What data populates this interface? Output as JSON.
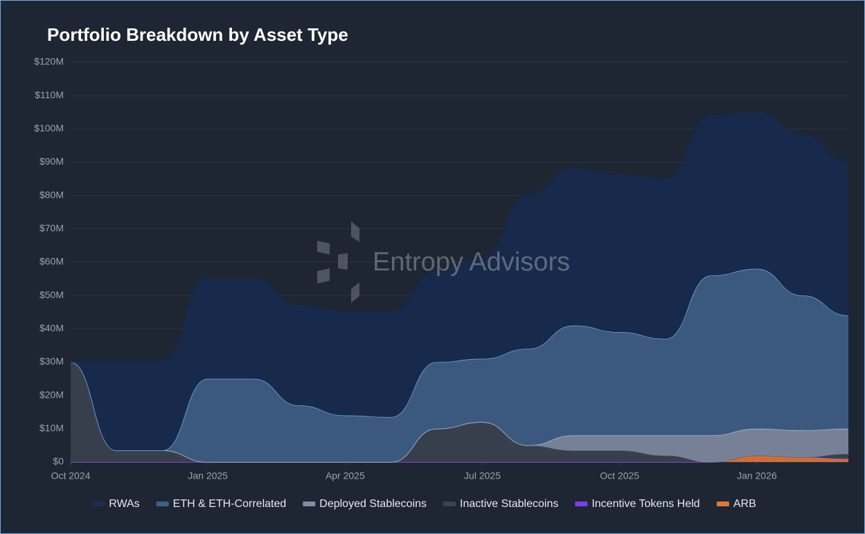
{
  "chart_data": {
    "type": "stacked-area",
    "title": "Portfolio Breakdown by Asset Type",
    "watermark": "Entropy Advisors",
    "x": [
      "2024-10",
      "2024-11",
      "2024-12",
      "2025-01",
      "2025-02",
      "2025-03",
      "2025-04",
      "2025-05",
      "2025-06",
      "2025-07",
      "2025-08",
      "2025-09",
      "2025-10",
      "2025-11",
      "2025-12",
      "2026-01",
      "2026-02",
      "2026-03"
    ],
    "xticks": [
      {
        "value": "2024-10",
        "label": "Oct 2024"
      },
      {
        "value": "2025-01",
        "label": "Jan 2025"
      },
      {
        "value": "2025-04",
        "label": "Apr 2025"
      },
      {
        "value": "2025-07",
        "label": "Jul 2025"
      },
      {
        "value": "2025-10",
        "label": "Oct 2025"
      },
      {
        "value": "2026-01",
        "label": "Jan 2026"
      }
    ],
    "ylim": [
      0,
      120
    ],
    "yticks": [
      {
        "value": 0,
        "label": "$0"
      },
      {
        "value": 10,
        "label": "$10M"
      },
      {
        "value": 20,
        "label": "$20M"
      },
      {
        "value": 30,
        "label": "$30M"
      },
      {
        "value": 40,
        "label": "$40M"
      },
      {
        "value": 50,
        "label": "$50M"
      },
      {
        "value": 60,
        "label": "$60M"
      },
      {
        "value": 70,
        "label": "$70M"
      },
      {
        "value": 80,
        "label": "$80M"
      },
      {
        "value": 90,
        "label": "$90M"
      },
      {
        "value": 100,
        "label": "$100M"
      },
      {
        "value": 110,
        "label": "$110M"
      },
      {
        "value": 120,
        "label": "$120M"
      }
    ],
    "grid": true,
    "legend": "bottom",
    "series": [
      {
        "name": "RWAs",
        "color": "#172a4b",
        "values": [
          0,
          26.5,
          26.5,
          30,
          30,
          30,
          31,
          31.5,
          27,
          30,
          46,
          47,
          47,
          48,
          48,
          47,
          48,
          46
        ]
      },
      {
        "name": "ETH & ETH-Correlated",
        "color": "#3e5f86",
        "values": [
          0,
          0,
          0,
          25,
          25,
          17,
          14,
          13.5,
          20,
          19,
          29,
          33,
          31,
          29,
          48,
          48,
          40.5,
          34
        ]
      },
      {
        "name": "Deployed Stablecoins",
        "color": "#7f8ca2",
        "values": [
          0,
          0,
          0,
          0,
          0,
          0,
          0,
          0,
          0,
          0,
          0,
          4.5,
          4.5,
          6,
          8,
          8,
          8,
          7.5
        ]
      },
      {
        "name": "Inactive Stablecoins",
        "color": "#3b434f",
        "values": [
          30,
          3.5,
          3.5,
          0,
          0,
          0,
          0,
          0,
          10,
          12,
          5,
          3.5,
          3.5,
          2,
          0,
          0,
          0,
          1.5
        ]
      },
      {
        "name": "Incentive Tokens Held",
        "color": "#7b3fe4",
        "values": [
          0,
          0,
          0,
          0,
          0,
          0,
          0,
          0,
          0,
          0,
          0,
          0,
          0,
          0,
          0,
          0,
          0,
          0
        ]
      },
      {
        "name": "ARB",
        "color": "#e0773a",
        "values": [
          0,
          0,
          0,
          0,
          0,
          0,
          0,
          0,
          0,
          0,
          0,
          0,
          0,
          0,
          0,
          2,
          1.5,
          1
        ]
      }
    ]
  }
}
